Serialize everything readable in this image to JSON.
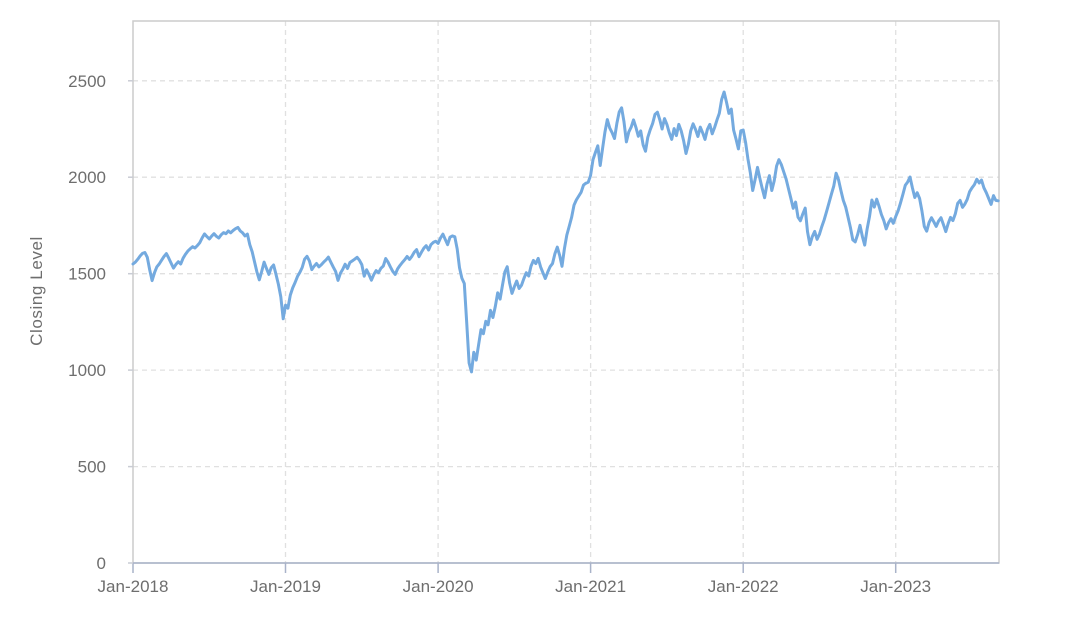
{
  "colors": {
    "line": "#74aadf",
    "grid": "#e0e0e0",
    "plot_border": "#cccccc",
    "x_axis_line": "#a9b3c9",
    "y_tick_mark": "#c9ccd4",
    "tick_text": "#6e6e6e",
    "background": "#ffffff"
  },
  "chart_data": {
    "type": "line",
    "title": "",
    "xlabel": "",
    "ylabel": "Closing Level",
    "series_name": "Closing Level",
    "legend_position": "none",
    "grid": "dashed",
    "xlim": [
      2018,
      2023.677
    ],
    "ylim": [
      0,
      2810
    ],
    "x_ticks": [
      2018,
      2019,
      2020,
      2021,
      2022,
      2023
    ],
    "x_tick_labels": [
      "Jan-2018",
      "Jan-2019",
      "Jan-2020",
      "Jan-2021",
      "Jan-2022",
      "Jan-2023"
    ],
    "y_ticks": [
      0,
      500,
      1000,
      1500,
      2000,
      2500
    ],
    "y_tick_labels": [
      "0",
      "500",
      "1000",
      "1500",
      "2000",
      "2500"
    ],
    "x_start": 2018,
    "x_step": 0.015625,
    "values": [
      1550,
      1560,
      1575,
      1592,
      1605,
      1610,
      1585,
      1520,
      1464,
      1505,
      1535,
      1550,
      1570,
      1589,
      1604,
      1580,
      1555,
      1529,
      1548,
      1562,
      1550,
      1580,
      1600,
      1617,
      1629,
      1640,
      1633,
      1646,
      1660,
      1685,
      1706,
      1692,
      1680,
      1695,
      1707,
      1694,
      1685,
      1702,
      1713,
      1707,
      1722,
      1712,
      1724,
      1733,
      1740,
      1721,
      1712,
      1696,
      1705,
      1650,
      1613,
      1560,
      1509,
      1468,
      1512,
      1560,
      1527,
      1496,
      1531,
      1545,
      1496,
      1445,
      1380,
      1266,
      1337,
      1321,
      1389,
      1426,
      1454,
      1486,
      1506,
      1532,
      1575,
      1590,
      1566,
      1521,
      1539,
      1553,
      1535,
      1546,
      1560,
      1572,
      1586,
      1560,
      1535,
      1512,
      1465,
      1502,
      1522,
      1549,
      1527,
      1558,
      1566,
      1575,
      1585,
      1570,
      1547,
      1487,
      1520,
      1495,
      1466,
      1494,
      1516,
      1505,
      1528,
      1540,
      1578,
      1560,
      1535,
      1512,
      1496,
      1525,
      1543,
      1558,
      1572,
      1589,
      1574,
      1590,
      1612,
      1625,
      1588,
      1611,
      1632,
      1645,
      1623,
      1650,
      1662,
      1668,
      1657,
      1685,
      1705,
      1678,
      1650,
      1689,
      1696,
      1691,
      1628,
      1531,
      1476,
      1449,
      1247,
      1037,
      991,
      1093,
      1052,
      1131,
      1210,
      1189,
      1253,
      1235,
      1310,
      1273,
      1330,
      1401,
      1368,
      1438,
      1508,
      1536,
      1452,
      1398,
      1433,
      1462,
      1423,
      1440,
      1475,
      1505,
      1488,
      1539,
      1569,
      1552,
      1579,
      1535,
      1504,
      1475,
      1508,
      1536,
      1552,
      1603,
      1638,
      1594,
      1538,
      1629,
      1700,
      1745,
      1792,
      1855,
      1882,
      1902,
      1922,
      1959,
      1969,
      1975,
      2010,
      2091,
      2128,
      2163,
      2061,
      2150,
      2233,
      2299,
      2256,
      2231,
      2201,
      2280,
      2338,
      2360,
      2287,
      2183,
      2235,
      2260,
      2297,
      2259,
      2212,
      2240,
      2168,
      2135,
      2207,
      2246,
      2278,
      2326,
      2337,
      2298,
      2250,
      2304,
      2274,
      2230,
      2196,
      2252,
      2216,
      2274,
      2240,
      2190,
      2123,
      2172,
      2240,
      2277,
      2248,
      2211,
      2260,
      2230,
      2196,
      2248,
      2274,
      2225,
      2258,
      2297,
      2331,
      2404,
      2442,
      2389,
      2331,
      2353,
      2245,
      2198,
      2147,
      2241,
      2245,
      2180,
      2096,
      2024,
      1931,
      1988,
      2051,
      1993,
      1942,
      1894,
      1964,
      2008,
      1931,
      1981,
      2058,
      2091,
      2066,
      2028,
      1991,
      1940,
      1890,
      1839,
      1871,
      1793,
      1774,
      1810,
      1840,
      1718,
      1650,
      1692,
      1719,
      1678,
      1705,
      1744,
      1780,
      1823,
      1867,
      1912,
      1955,
      2021,
      1987,
      1932,
      1880,
      1845,
      1792,
      1740,
      1675,
      1665,
      1702,
      1751,
      1692,
      1648,
      1731,
      1796,
      1882,
      1845,
      1886,
      1850,
      1807,
      1775,
      1732,
      1765,
      1785,
      1761,
      1796,
      1826,
      1867,
      1911,
      1958,
      1975,
      2001,
      1945,
      1895,
      1920,
      1890,
      1826,
      1745,
      1720,
      1766,
      1790,
      1768,
      1745,
      1773,
      1790,
      1755,
      1718,
      1760,
      1792,
      1775,
      1810,
      1865,
      1880,
      1844,
      1860,
      1885,
      1925,
      1945,
      1962,
      1990,
      1970,
      1985,
      1945,
      1920,
      1890,
      1859,
      1905,
      1880,
      1878
    ]
  }
}
